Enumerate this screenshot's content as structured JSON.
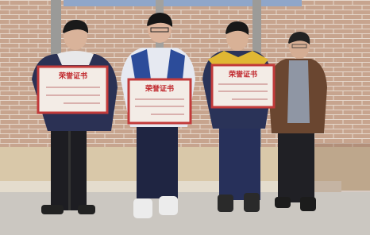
{
  "certificates": [
    {
      "title": "荣誉证书"
    },
    {
      "title": "荣誉证书"
    },
    {
      "title": "荣誉证书"
    }
  ]
}
